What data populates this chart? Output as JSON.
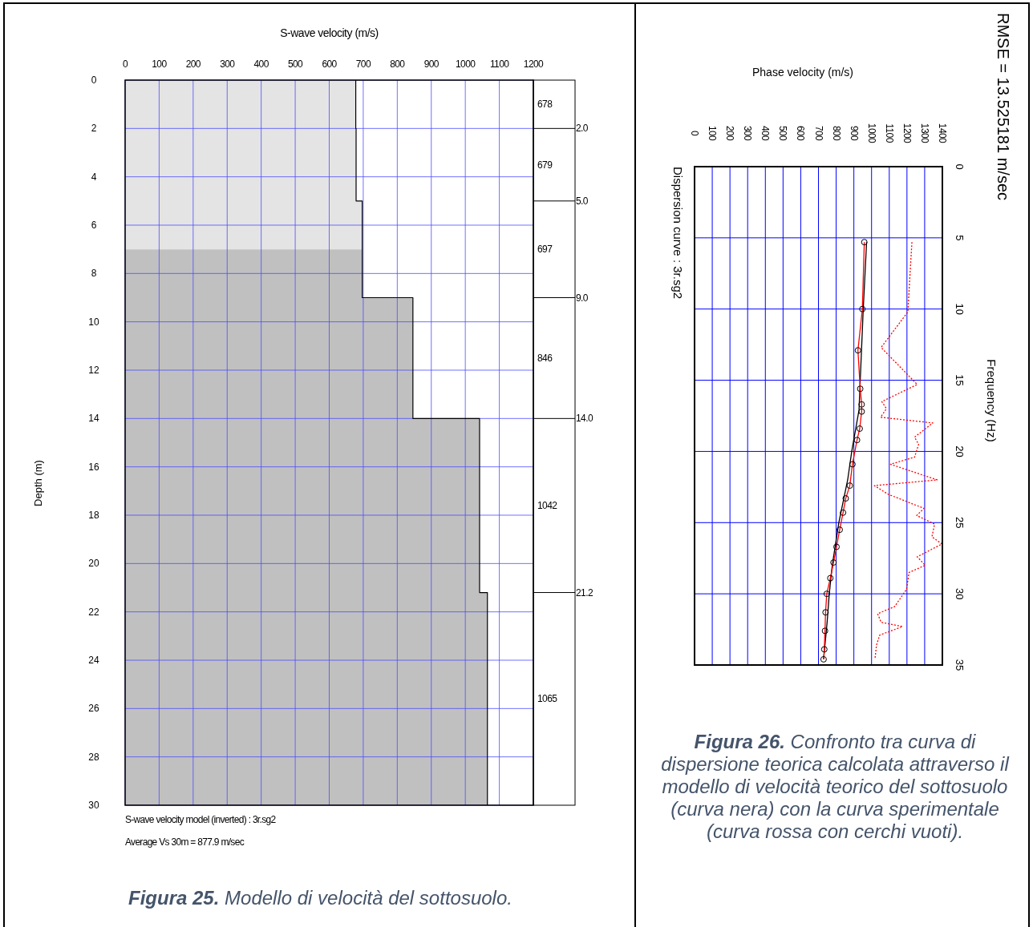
{
  "chart_data": [
    {
      "type": "area",
      "orientation": "horizontal",
      "xlabel": "S-wave velocity (m/s)",
      "ylabel": "Depth (m)",
      "xlim": [
        0,
        1200
      ],
      "xticks": [
        0,
        100,
        200,
        300,
        400,
        500,
        600,
        700,
        800,
        900,
        1000,
        1100,
        1200
      ],
      "ylim": [
        30,
        0
      ],
      "yticks": [
        0,
        2,
        4,
        6,
        8,
        10,
        12,
        14,
        16,
        18,
        20,
        22,
        24,
        26,
        28,
        30
      ],
      "grid": true,
      "series": [
        {
          "type": "area",
          "color": "#e4e4e4",
          "x": [
            0,
            2,
            2,
            5,
            5,
            7
          ],
          "values": [
            678,
            678,
            679,
            679,
            697,
            697
          ]
        },
        {
          "type": "area",
          "color": "#c0c0c0",
          "x": [
            7,
            9,
            9,
            14,
            14,
            21.2,
            21.2,
            30
          ],
          "values": [
            697,
            697,
            846,
            846,
            1042,
            1042,
            1065,
            1065
          ]
        },
        {
          "type": "line",
          "color": "#000000",
          "x": [
            0,
            2,
            2,
            5,
            5,
            9,
            9,
            14,
            14,
            21.2,
            21.2,
            30
          ],
          "values": [
            678,
            678,
            679,
            679,
            697,
            697,
            846,
            846,
            1042,
            1042,
            1065,
            1065
          ]
        }
      ],
      "ref_lines": [
        {
          "axis": "y",
          "value": 2,
          "label": "2.0"
        },
        {
          "axis": "y",
          "value": 5,
          "label": "5.0"
        },
        {
          "axis": "y",
          "value": 9,
          "label": "9.0"
        },
        {
          "axis": "y",
          "value": 14,
          "label": "14.0"
        },
        {
          "axis": "y",
          "value": 21.2,
          "label": "21.2"
        }
      ],
      "annotations": [
        "678",
        "679",
        "697",
        "846",
        "1042",
        "1065",
        "S-wave velocity model (inverted) : 3r.sg2",
        "Average Vs 30m = 877.9 m/sec",
        "Figura 25. Modello di velocità del sottosuolo."
      ]
    },
    {
      "type": "line",
      "xlabel": "Phase velocity (m/s)",
      "ylabel": "Frequency (Hz)",
      "xlim": [
        0,
        1400
      ],
      "xticks": [
        0,
        100,
        200,
        300,
        400,
        500,
        600,
        700,
        800,
        900,
        1000,
        1100,
        1200,
        1300,
        1400
      ],
      "ylim": [
        35,
        0
      ],
      "yticks": [
        0,
        5,
        10,
        15,
        20,
        25,
        30,
        35
      ],
      "grid": true,
      "series": [
        {
          "type": "line",
          "color": "#000000",
          "x": [
            972,
            953,
            936,
            929,
            888,
            865,
            815,
            778,
            761,
            749,
            729
          ],
          "values": [
            5.3,
            10,
            15,
            17.1,
            20,
            22,
            25,
            28,
            30,
            32,
            34.6
          ]
        },
        {
          "type": "line",
          "color": "#ff0000",
          "x": [
            959,
            948,
            923,
            936,
            944,
            944,
            933,
            918,
            892,
            877,
            854,
            839,
            820,
            802,
            785,
            767,
            747,
            740,
            737,
            733,
            729
          ],
          "values": [
            5.3,
            10,
            12.9,
            15.6,
            16.7,
            17.2,
            18.4,
            19.2,
            20.9,
            22.4,
            23.3,
            24.3,
            25.5,
            26.7,
            27.8,
            28.9,
            30,
            31.3,
            32.6,
            33.9,
            34.6
          ]
        },
        {
          "type": "scatter",
          "color": "#000000",
          "marker": "circle",
          "x": [
            959,
            948,
            923,
            936,
            944,
            944,
            933,
            918,
            892,
            877,
            854,
            839,
            820,
            802,
            785,
            767,
            747,
            740,
            737,
            733,
            729
          ],
          "values": [
            5.3,
            10,
            12.9,
            15.6,
            16.7,
            17.2,
            18.4,
            19.2,
            20.9,
            22.4,
            23.3,
            24.3,
            25.5,
            26.7,
            27.8,
            28.9,
            30,
            31.3,
            32.6,
            33.9,
            34.6
          ]
        },
        {
          "type": "line",
          "color": "#ff0000",
          "line_style": "dotted",
          "x": [
            1228,
            1205,
            1054,
            1258,
            1058,
            1084,
            1051,
            1346,
            1243,
            1266,
            1243,
            1107,
            1371,
            1016,
            1092,
            1296,
            1255,
            1356,
            1341,
            1398,
            1258,
            1303,
            1212,
            1197,
            1130,
            1034,
            1054,
            1175,
            1046,
            1028,
            1019
          ],
          "values": [
            5.3,
            10.2,
            12.7,
            15.3,
            16.5,
            17.0,
            17.6,
            18.0,
            19.0,
            19.5,
            20.4,
            20.9,
            22.0,
            22.4,
            23.0,
            24.0,
            24.5,
            25.1,
            26.0,
            26.5,
            27.4,
            28.0,
            28.5,
            29.7,
            30.9,
            31.4,
            32.0,
            32.3,
            32.9,
            33.6,
            34.6
          ]
        }
      ],
      "annotations": [
        "Dispersion curve : 3r.sg2",
        "RMSE = 13.525181 m/sec",
        "Figura 26. Confronto tra curva di dispersione teorica calcolata attraverso il modello di velocità teorico del sottosuolo (curva nera) con la curva sperimentale (curva rossa con cerchi vuoti)."
      ]
    }
  ]
}
